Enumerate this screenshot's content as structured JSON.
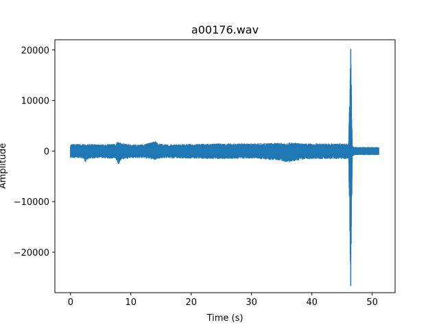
{
  "chart_data": {
    "type": "line",
    "title": "a00176.wav",
    "xlabel": "Time (s)",
    "ylabel": "Amplitude",
    "xlim": [
      -2.6,
      53.8
    ],
    "ylim": [
      -28000,
      22000
    ],
    "x_ticks": [
      {
        "value": 0,
        "label": "0"
      },
      {
        "value": 10,
        "label": "10"
      },
      {
        "value": 20,
        "label": "20"
      },
      {
        "value": 30,
        "label": "30"
      },
      {
        "value": 40,
        "label": "40"
      },
      {
        "value": 50,
        "label": "50"
      }
    ],
    "y_ticks": [
      {
        "value": 20000,
        "label": "20000"
      },
      {
        "value": 10000,
        "label": "10000"
      },
      {
        "value": 0,
        "label": "0"
      },
      {
        "value": -10000,
        "label": "−10000"
      },
      {
        "value": -20000,
        "label": "−20000"
      }
    ],
    "grid": false,
    "series": [
      {
        "color": "#1f77b4",
        "duration": 51.1,
        "envelope_x": [
          0,
          2,
          2.5,
          3,
          5,
          7.5,
          7.9,
          8.4,
          10,
          12,
          14.1,
          14.5,
          16,
          20,
          25,
          30,
          34,
          36.5,
          37.5,
          38.5,
          40,
          43,
          45.5,
          46.1,
          46.45,
          46.7,
          47.5,
          51.1
        ],
        "envelope_upper": [
          1400,
          1400,
          1300,
          1400,
          1300,
          1500,
          1900,
          1600,
          1300,
          1300,
          2000,
          1500,
          1300,
          1400,
          1500,
          1500,
          1600,
          1700,
          1600,
          1500,
          1500,
          1500,
          1500,
          1500,
          20200,
          1000,
          800,
          800
        ],
        "envelope_lower": [
          -1400,
          -1400,
          -2200,
          -1500,
          -1400,
          -1600,
          -2700,
          -1700,
          -1400,
          -1400,
          -1800,
          -1500,
          -1400,
          -1500,
          -1600,
          -1500,
          -1800,
          -2300,
          -1900,
          -1700,
          -1600,
          -1600,
          -1600,
          -1600,
          -26700,
          -1000,
          -800,
          -800
        ]
      }
    ]
  }
}
